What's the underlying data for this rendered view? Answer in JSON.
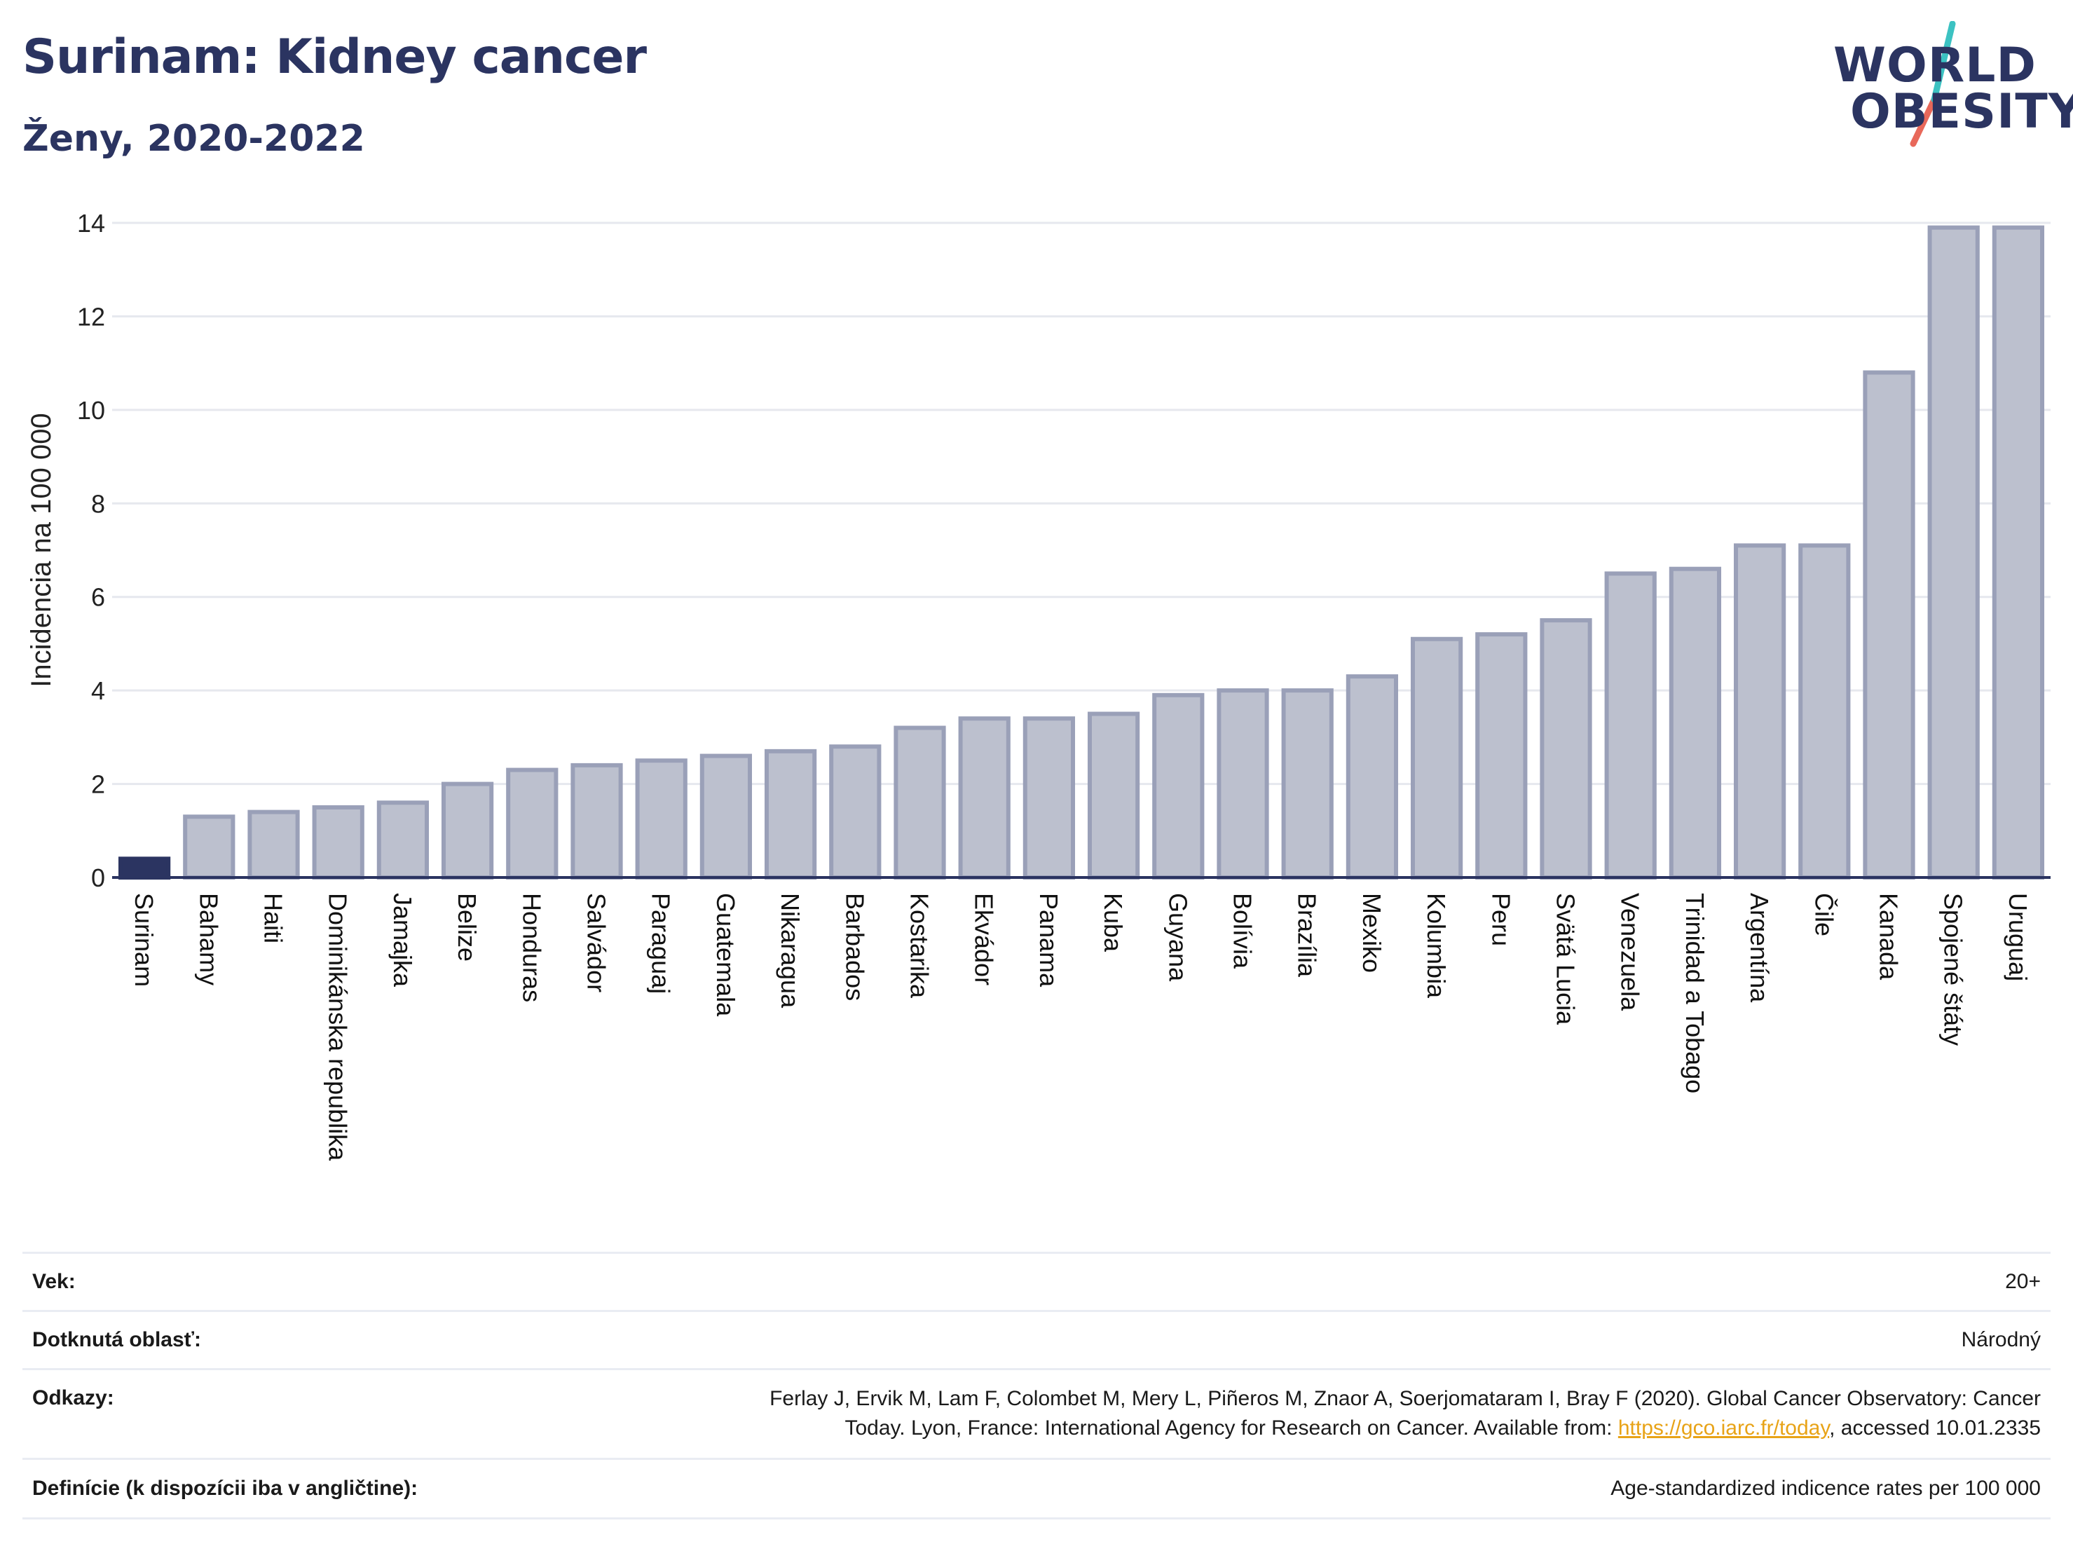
{
  "header": {
    "title": "Surinam: Kidney cancer",
    "subtitle": "Ženy, 2020-2022"
  },
  "logo": {
    "line1": "WORLD",
    "line2": "OBESITY",
    "text_color": "#2b3461",
    "slash_colors": [
      "#3cc2c2",
      "#e8685a"
    ]
  },
  "chart_data": {
    "type": "bar",
    "ylabel": "Incidencia na 100 000",
    "ylim": [
      0,
      14
    ],
    "yticks": [
      0,
      2,
      4,
      6,
      8,
      10,
      12,
      14
    ],
    "grid": true,
    "highlight_color": "#2b3461",
    "bar_color": "#bcc0ce",
    "bar_edge_color": "#9aa0b8",
    "categories": [
      "Surinam",
      "Bahamy",
      "Haiti",
      "Dominikánska republika",
      "Jamajka",
      "Belize",
      "Honduras",
      "Salvádor",
      "Paraguaj",
      "Guatemala",
      "Nikaragua",
      "Barbados",
      "Kostarika",
      "Ekvádor",
      "Panama",
      "Kuba",
      "Guyana",
      "Bolívia",
      "Brazília",
      "Mexiko",
      "Kolumbia",
      "Peru",
      "Svätá Lucia",
      "Venezuela",
      "Trinidad a Tobago",
      "Argentína",
      "Čile",
      "Kanada",
      "Spojené štáty",
      "Uruguaj"
    ],
    "values": [
      0.4,
      1.3,
      1.4,
      1.5,
      1.6,
      2.0,
      2.3,
      2.4,
      2.5,
      2.6,
      2.7,
      2.8,
      3.2,
      3.4,
      3.4,
      3.5,
      3.9,
      4.0,
      4.0,
      4.3,
      5.1,
      5.2,
      5.5,
      6.5,
      6.6,
      7.1,
      7.1,
      10.8,
      13.9,
      13.9
    ],
    "highlight_index": 0
  },
  "details": [
    {
      "label": "Vek:",
      "value": "20+"
    },
    {
      "label": "Dotknutá oblasť:",
      "value": "Národný"
    },
    {
      "label": "Odkazy:",
      "value_line1": "Ferlay J, Ervik M, Lam F, Colombet M, Mery L, Piñeros M, Znaor A, Soerjomataram I, Bray F (2020). Global Cancer Observatory: Cancer",
      "value_line2_pre": "Today. Lyon, France: International Agency for Research on Cancer. Available from: ",
      "link": "https://gco.iarc.fr/today",
      "value_line2_post": ", accessed 10.01.2335"
    },
    {
      "label": "Definície (k dispozícii iba v angličtine):",
      "value": "Age-standardized indicence rates per 100 000"
    }
  ]
}
